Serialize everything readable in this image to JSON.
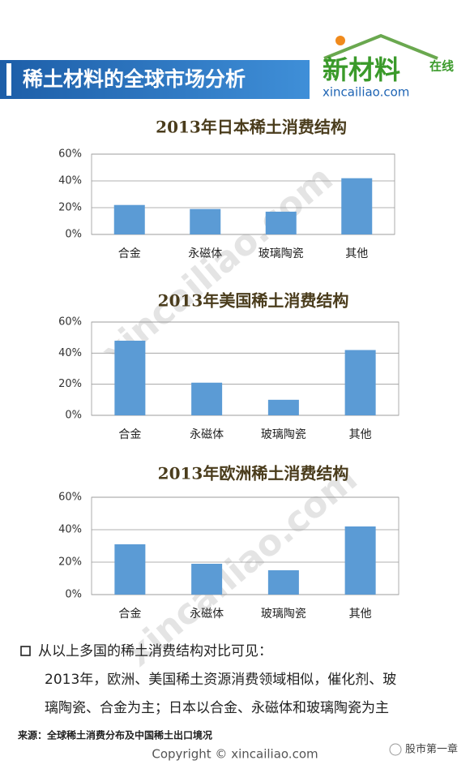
{
  "header": {
    "title": "稀土材料的全球市场分析",
    "logo": "新材料",
    "logo_tag": "在线",
    "logo_url": "xincailiao.com"
  },
  "watermark": "xincailiao.com",
  "chart_data": [
    {
      "type": "bar",
      "title": "2013年日本稀土消费结构",
      "categories": [
        "合金",
        "永磁体",
        "玻璃陶瓷",
        "其他"
      ],
      "values": [
        22,
        19,
        17,
        42
      ],
      "color": "#5b9bd5",
      "ylim": [
        0,
        60
      ],
      "yticks": [
        {
          "value": 0,
          "label": "0%"
        },
        {
          "value": 20,
          "label": "20%"
        },
        {
          "value": 40,
          "label": "40%"
        },
        {
          "value": 60,
          "label": "60%"
        }
      ],
      "grid": true
    },
    {
      "type": "bar",
      "title": "2013年美国稀土消费结构",
      "categories": [
        "合金",
        "永磁体",
        "玻璃陶瓷",
        "其他"
      ],
      "values": [
        48,
        21,
        10,
        42
      ],
      "color": "#5b9bd5",
      "ylim": [
        0,
        60
      ],
      "yticks": [
        {
          "value": 0,
          "label": "0%"
        },
        {
          "value": 20,
          "label": "20%"
        },
        {
          "value": 40,
          "label": "40%"
        },
        {
          "value": 60,
          "label": "60%"
        }
      ],
      "grid": true
    },
    {
      "type": "bar",
      "title": "2013年欧洲稀土消费结构",
      "categories": [
        "合金",
        "永磁体",
        "玻璃陶瓷",
        "其他"
      ],
      "values": [
        31,
        19,
        15,
        42
      ],
      "color": "#5b9bd5",
      "ylim": [
        0,
        60
      ],
      "yticks": [
        {
          "value": 0,
          "label": "0%"
        },
        {
          "value": 20,
          "label": "20%"
        },
        {
          "value": 40,
          "label": "40%"
        },
        {
          "value": 60,
          "label": "60%"
        }
      ],
      "grid": true
    }
  ],
  "text": {
    "heading": "从以上多国的稀土消费结构对比可见：",
    "lines": [
      "2013年，欧洲、美国稀土资源消费领域相似，催化剂、玻",
      "璃陶瓷、合金为主；日本以合金、永磁体和玻璃陶瓷为主"
    ]
  },
  "source": "来源：全球稀土消费分布及中国稀土出口境况",
  "copyright": "Copyright © xincailiao.com",
  "account": "股市第一章"
}
